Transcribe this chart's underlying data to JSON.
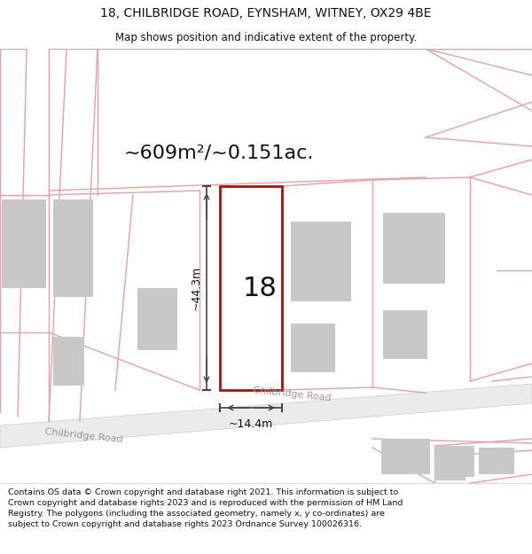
{
  "title_line1": "18, CHILBRIDGE ROAD, EYNSHAM, WITNEY, OX29 4BE",
  "title_line2": "Map shows position and indicative extent of the property.",
  "area_text": "~609m²/~0.151ac.",
  "number_label": "18",
  "dim_height": "~44.3m",
  "dim_width": "~14.4m",
  "road_label_left": "Chilbridge Road",
  "road_label_right": "Chilbridge Road",
  "footer_text": "Contains OS data © Crown copyright and database right 2021. This information is subject to Crown copyright and database rights 2023 and is reproduced with the permission of HM Land Registry. The polygons (including the associated geometry, namely x, y co-ordinates) are subject to Crown copyright and database rights 2023 Ordnance Survey 100026316.",
  "bg_color": "#ffffff",
  "plot_outline_color": "#cc0000",
  "light_red": "#e8a0a0",
  "building_color": "#c8c8c8",
  "dim_line_color": "#444444",
  "text_color": "#111111",
  "road_text_color": "#999999",
  "road_fill": "#ebebeb",
  "title_fontsize": 10,
  "subtitle_fontsize": 8.5,
  "area_fontsize": 16,
  "number_fontsize": 22,
  "dim_fontsize": 9,
  "road_fontsize": 8,
  "footer_fontsize": 6.8
}
